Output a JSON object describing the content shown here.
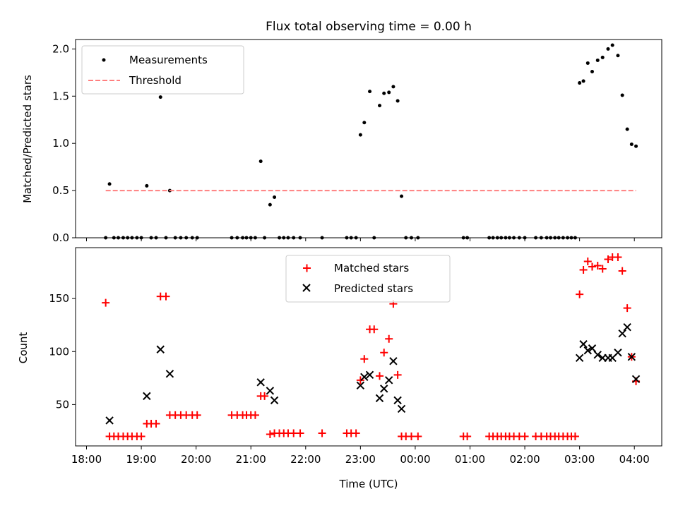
{
  "figure_title": "Flux total observing time = 0.00 h",
  "xlabel": "Time (UTC)",
  "colors": {
    "measure": "#000000",
    "threshold": "#ff7f7f",
    "matched": "#ff0000",
    "predicted": "#000000"
  },
  "chart_data": [
    {
      "type": "scatter",
      "ylabel": "Matched/Predicted stars",
      "ylim": [
        0,
        2.1
      ],
      "yticks": [
        0.0,
        0.5,
        1.0,
        1.5,
        2.0
      ],
      "ytick_labels": [
        "0.0",
        "0.5",
        "1.0",
        "1.5",
        "2.0"
      ],
      "xlim_hours": [
        17.8,
        28.5
      ],
      "xticks_hours": [
        18,
        19,
        20,
        21,
        22,
        23,
        24,
        25,
        26,
        27,
        28
      ],
      "xtick_labels": [
        "18:00",
        "19:00",
        "20:00",
        "21:00",
        "22:00",
        "23:00",
        "00:00",
        "01:00",
        "02:00",
        "03:00",
        "04:00"
      ],
      "legend": {
        "placement": "upper-left",
        "entries": [
          "Measurements",
          "Threshold"
        ]
      },
      "series": [
        {
          "name": "Measurements",
          "x": [
            18.35,
            18.42,
            18.5,
            18.58,
            18.67,
            18.75,
            18.83,
            18.92,
            19.0,
            19.1,
            19.18,
            19.27,
            19.35,
            19.45,
            19.52,
            19.62,
            19.72,
            19.82,
            19.93,
            20.02,
            20.65,
            20.75,
            20.85,
            20.92,
            21.0,
            21.08,
            21.18,
            21.25,
            21.35,
            21.43,
            21.52,
            21.6,
            21.68,
            21.78,
            21.9,
            22.3,
            22.75,
            22.83,
            22.92,
            23.0,
            23.07,
            23.17,
            23.25,
            23.35,
            23.43,
            23.52,
            23.6,
            23.68,
            23.75,
            23.83,
            23.93,
            24.05,
            24.88,
            24.95,
            25.35,
            25.42,
            25.5,
            25.57,
            25.65,
            25.72,
            25.8,
            25.9,
            26.0,
            26.2,
            26.3,
            26.4,
            26.47,
            26.55,
            26.62,
            26.7,
            26.78,
            26.85,
            26.92,
            27.0,
            27.07,
            27.15,
            27.23,
            27.33,
            27.42,
            27.52,
            27.6,
            27.7,
            27.78,
            27.87,
            27.95,
            28.03
          ],
          "y": [
            0.0,
            0.57,
            0.0,
            0.0,
            0.0,
            0.0,
            0.0,
            0.0,
            0.0,
            0.55,
            0.0,
            0.0,
            1.49,
            0.0,
            0.5,
            0.0,
            0.0,
            0.0,
            0.0,
            0.0,
            0.0,
            0.0,
            0.0,
            0.0,
            0.0,
            0.0,
            0.81,
            0.0,
            0.35,
            0.43,
            0.0,
            0.0,
            0.0,
            0.0,
            0.0,
            0.0,
            0.0,
            0.0,
            0.0,
            1.09,
            1.22,
            1.55,
            0.0,
            1.4,
            1.53,
            1.54,
            1.6,
            1.45,
            0.44,
            0.0,
            0.0,
            0.0,
            0.0,
            0.0,
            0.0,
            0.0,
            0.0,
            0.0,
            0.0,
            0.0,
            0.0,
            0.0,
            0.0,
            0.0,
            0.0,
            0.0,
            0.0,
            0.0,
            0.0,
            0.0,
            0.0,
            0.0,
            0.0,
            1.64,
            1.66,
            1.85,
            1.76,
            1.88,
            1.91,
            2.0,
            2.04,
            1.93,
            1.51,
            1.15,
            0.99,
            0.97
          ]
        },
        {
          "name": "Threshold",
          "x": [
            18.35,
            28.03
          ],
          "y": [
            0.5,
            0.5
          ]
        }
      ]
    },
    {
      "type": "scatter",
      "ylabel": "Count",
      "ylim": [
        11,
        198
      ],
      "yticks": [
        50,
        100,
        150
      ],
      "ytick_labels": [
        "50",
        "100",
        "150"
      ],
      "xlim_hours": [
        17.8,
        28.5
      ],
      "xticks_hours": [
        18,
        19,
        20,
        21,
        22,
        23,
        24,
        25,
        26,
        27,
        28
      ],
      "xtick_labels": [
        "18:00",
        "19:00",
        "20:00",
        "21:00",
        "22:00",
        "23:00",
        "00:00",
        "01:00",
        "02:00",
        "03:00",
        "04:00"
      ],
      "legend": {
        "placement": "upper-center",
        "entries": [
          "Matched stars",
          "Predicted stars"
        ]
      },
      "series": [
        {
          "name": "Matched stars",
          "x": [
            18.35,
            18.42,
            18.5,
            18.58,
            18.67,
            18.75,
            18.83,
            18.92,
            19.0,
            19.1,
            19.18,
            19.27,
            19.35,
            19.45,
            19.52,
            19.62,
            19.72,
            19.82,
            19.93,
            20.02,
            20.65,
            20.75,
            20.85,
            20.92,
            21.0,
            21.08,
            21.18,
            21.25,
            21.35,
            21.43,
            21.52,
            21.6,
            21.68,
            21.78,
            21.9,
            22.3,
            22.75,
            22.83,
            22.92,
            23.0,
            23.07,
            23.17,
            23.25,
            23.35,
            23.43,
            23.52,
            23.6,
            23.68,
            23.75,
            23.83,
            23.93,
            24.05,
            24.88,
            24.95,
            25.35,
            25.42,
            25.5,
            25.57,
            25.65,
            25.72,
            25.8,
            25.9,
            26.0,
            26.2,
            26.3,
            26.4,
            26.47,
            26.55,
            26.62,
            26.7,
            26.78,
            26.85,
            26.92,
            27.0,
            27.07,
            27.15,
            27.23,
            27.33,
            27.42,
            27.52,
            27.6,
            27.7,
            27.78,
            27.87,
            27.95,
            28.03
          ],
          "y": [
            146,
            20,
            20,
            20,
            20,
            20,
            20,
            20,
            20,
            32,
            32,
            32,
            152,
            152,
            40,
            40,
            40,
            40,
            40,
            40,
            40,
            40,
            40,
            40,
            40,
            40,
            58,
            58,
            22,
            23,
            23,
            23,
            23,
            23,
            23,
            23,
            23,
            23,
            23,
            73,
            93,
            121,
            121,
            77,
            99,
            112,
            145,
            78,
            20,
            20,
            20,
            20,
            20,
            20,
            20,
            20,
            20,
            20,
            20,
            20,
            20,
            20,
            20,
            20,
            20,
            20,
            20,
            20,
            20,
            20,
            20,
            20,
            20,
            154,
            177,
            185,
            180,
            181,
            178,
            187,
            189,
            189,
            176,
            141,
            95,
            72
          ]
        },
        {
          "name": "Predicted stars",
          "x": [
            18.42,
            19.1,
            19.35,
            19.52,
            21.18,
            21.35,
            21.43,
            23.0,
            23.07,
            23.17,
            23.35,
            23.43,
            23.52,
            23.6,
            23.68,
            23.75,
            27.0,
            27.07,
            27.15,
            27.23,
            27.33,
            27.42,
            27.52,
            27.6,
            27.7,
            27.78,
            27.87,
            27.95,
            28.03
          ],
          "y": [
            35,
            58,
            102,
            79,
            71,
            63,
            54,
            68,
            76,
            78,
            56,
            65,
            73,
            91,
            54,
            46,
            94,
            107,
            101,
            103,
            97,
            94,
            94,
            94,
            99,
            117,
            123,
            95,
            74
          ]
        }
      ]
    }
  ]
}
